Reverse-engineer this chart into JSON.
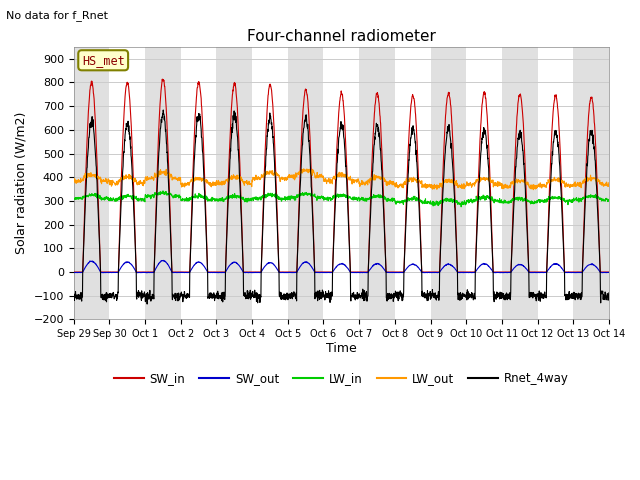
{
  "title": "Four-channel radiometer",
  "subtitle": "No data for f_Rnet",
  "ylabel": "Solar radiation (W/m2)",
  "xlabel": "Time",
  "ylim": [
    -200,
    950
  ],
  "yticks": [
    -200,
    -100,
    0,
    100,
    200,
    300,
    400,
    500,
    600,
    700,
    800,
    900
  ],
  "xtick_labels": [
    "Sep 29",
    "Sep 30",
    "Oct 1",
    "Oct 2",
    "Oct 3",
    "Oct 4",
    "Oct 5",
    "Oct 6",
    "Oct 7",
    "Oct 8",
    "Oct 9",
    "Oct 10",
    "Oct 11",
    "Oct 12",
    "Oct 13",
    "Oct 14"
  ],
  "station_label": "HS_met",
  "legend_entries": [
    {
      "label": "SW_in",
      "color": "#cc0000"
    },
    {
      "label": "SW_out",
      "color": "#0000cc"
    },
    {
      "label": "LW_in",
      "color": "#00cc00"
    },
    {
      "label": "LW_out",
      "color": "#ff9900"
    },
    {
      "label": "Rnet_4way",
      "color": "#000000"
    }
  ],
  "bg_color": "#ffffff",
  "plot_bg_color": "#ffffff",
  "band_color": "#e0e0e0",
  "grid_color": "#d0d0d0",
  "n_days": 15,
  "sw_in_peak": [
    800,
    800,
    815,
    800,
    795,
    790,
    770,
    755,
    755,
    745,
    755,
    755,
    750,
    745,
    740
  ],
  "sw_out_peaks": [
    45,
    42,
    48,
    42,
    41,
    40,
    42,
    35,
    35,
    33,
    33,
    35,
    32,
    35,
    33
  ],
  "lw_in_base": [
    315,
    310,
    325,
    310,
    310,
    315,
    320,
    315,
    310,
    300,
    295,
    305,
    300,
    305,
    310
  ],
  "lw_out_base": [
    395,
    385,
    405,
    380,
    385,
    405,
    415,
    395,
    385,
    375,
    370,
    380,
    370,
    375,
    380
  ],
  "rnet_peak": [
    640,
    625,
    670,
    660,
    660,
    650,
    650,
    625,
    620,
    605,
    605,
    600,
    590,
    590,
    600
  ],
  "rnet_night": [
    -105,
    -100,
    -105,
    -100,
    -100,
    -100,
    -100,
    -100,
    -100,
    -100,
    -100,
    -100,
    -100,
    -100,
    -100
  ],
  "figwidth": 6.4,
  "figheight": 4.8,
  "dpi": 100
}
